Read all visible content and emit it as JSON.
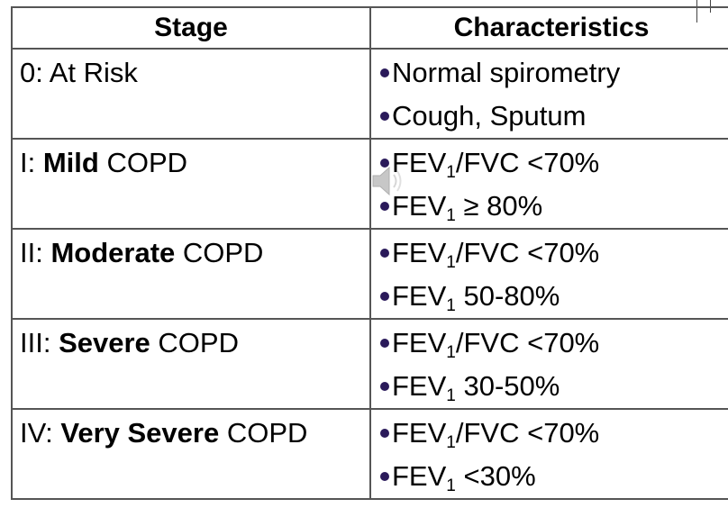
{
  "table": {
    "headers": {
      "stage": "Stage",
      "characteristics": "Characteristics"
    },
    "rows": [
      {
        "stage_prefix": "0: At Risk",
        "stage_bold": "",
        "stage_suffix": "",
        "items": [
          {
            "pre": "Normal spirometry",
            "sub": "",
            "post": ""
          },
          {
            "pre": "Cough, Sputum",
            "sub": "",
            "post": ""
          }
        ]
      },
      {
        "stage_prefix": "I: ",
        "stage_bold": "Mild",
        "stage_suffix": " COPD",
        "items": [
          {
            "pre": "FEV",
            "sub": "1",
            "post": "/FVC <70%"
          },
          {
            "pre": "FEV",
            "sub": "1",
            "post": " ≥ 80%"
          }
        ]
      },
      {
        "stage_prefix": "II: ",
        "stage_bold": "Moderate",
        "stage_suffix": " COPD",
        "items": [
          {
            "pre": "FEV",
            "sub": "1",
            "post": "/FVC <70%"
          },
          {
            "pre": "FEV",
            "sub": "1",
            "post": " 50-80%"
          }
        ]
      },
      {
        "stage_prefix": "III: ",
        "stage_bold": "Severe",
        "stage_suffix": " COPD",
        "items": [
          {
            "pre": "FEV",
            "sub": "1",
            "post": "/FVC <70%"
          },
          {
            "pre": "FEV",
            "sub": "1",
            "post": " 30-50%"
          }
        ]
      },
      {
        "stage_prefix": "IV: ",
        "stage_bold": "Very Severe",
        "stage_suffix": " COPD",
        "items": [
          {
            "pre": "FEV",
            "sub": "1",
            "post": "/FVC <70%"
          },
          {
            "pre": "FEV",
            "sub": "1",
            "post": " <30%"
          }
        ]
      }
    ]
  },
  "overlay": {
    "icon": "speaker-icon"
  },
  "colors": {
    "bullet": "#2a1a5a",
    "border": "#555555"
  }
}
